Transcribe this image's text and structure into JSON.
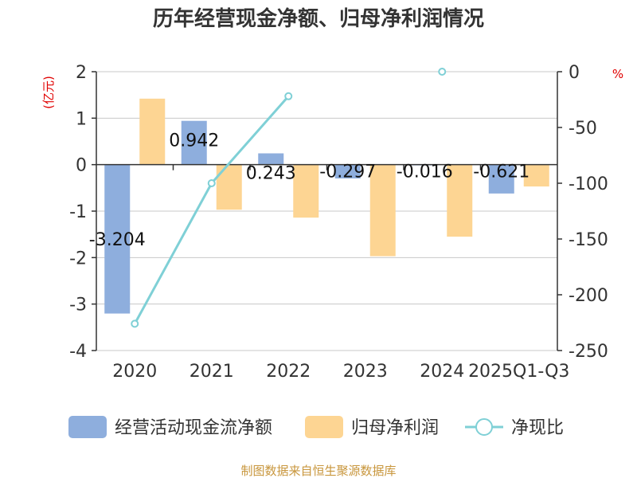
{
  "chart_data": {
    "type": "bar",
    "title": "历年经营现金净额、归母净利润情况",
    "categories": [
      "2020",
      "2021",
      "2022",
      "2023",
      "2024",
      "2025Q1-Q3"
    ],
    "left_axis": {
      "unit": "(亿元)",
      "ylim": [
        -4,
        2
      ],
      "ticks": [
        "2",
        "1",
        "0",
        "-1",
        "-2",
        "-3",
        "-4"
      ]
    },
    "right_axis": {
      "unit": "%",
      "ylim": [
        -250,
        0
      ],
      "ticks": [
        "0",
        "-50",
        "-100",
        "-150",
        "-200",
        "-250"
      ]
    },
    "series": [
      {
        "name": "经营活动现金流净额",
        "type": "bar",
        "axis": "left",
        "color": "#8eaedd",
        "values": [
          -3.204,
          0.942,
          0.243,
          -0.297,
          -0.016,
          -0.621
        ],
        "labels": [
          "-3.204",
          "0.942",
          "0.243",
          "-0.297",
          "-0.016",
          "-0.621"
        ]
      },
      {
        "name": "归母净利润",
        "type": "bar",
        "axis": "left",
        "color": "#fdd593",
        "values": [
          1.42,
          -0.97,
          -1.14,
          -1.97,
          -1.55,
          -0.47
        ]
      },
      {
        "name": "净现比",
        "type": "line",
        "axis": "right",
        "color": "#7fd0d6",
        "values": [
          -226,
          -100,
          -22,
          null,
          0,
          null
        ]
      }
    ],
    "legend_position": "bottom",
    "grid": true
  },
  "source": "制图数据来自恒生聚源数据库"
}
